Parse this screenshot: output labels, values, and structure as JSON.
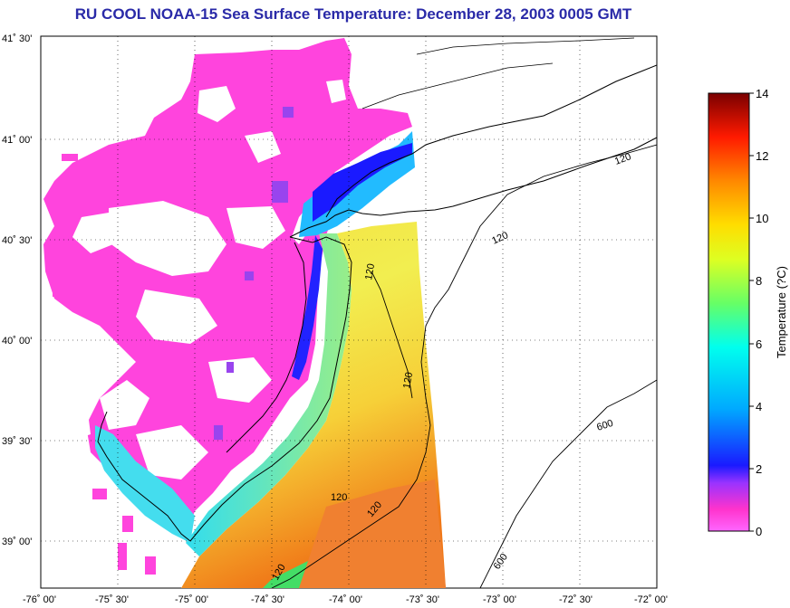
{
  "title": "RU COOL  NOAA-15  Sea Surface Temperature:  December 28, 2003 0005 GMT",
  "lon_ticks": [
    "-76˚ 00'",
    "-75˚ 30'",
    "-75˚ 00'",
    "-74˚ 30'",
    "-74˚ 00'",
    "-73˚ 30'",
    "-73˚ 00'",
    "-72˚ 30'",
    "-72˚ 00'"
  ],
  "lat_ticks": [
    "41˚ 30'",
    "41˚ 00'",
    "40˚ 30'",
    "40˚ 00'",
    "39˚ 30'",
    "39˚ 00'"
  ],
  "colorbar": {
    "label": "Temperature (?C)",
    "ticks": [
      "0",
      "2",
      "4",
      "6",
      "8",
      "10",
      "12",
      "14"
    ],
    "min": 0,
    "max": 14
  },
  "contour_labels": [
    "120",
    "120",
    "120",
    "120",
    "120",
    "120",
    "120",
    "600",
    "600"
  ],
  "colors": {
    "title": "#2a2aa8",
    "cold": "#ff44dd",
    "warm": "#f07818"
  }
}
